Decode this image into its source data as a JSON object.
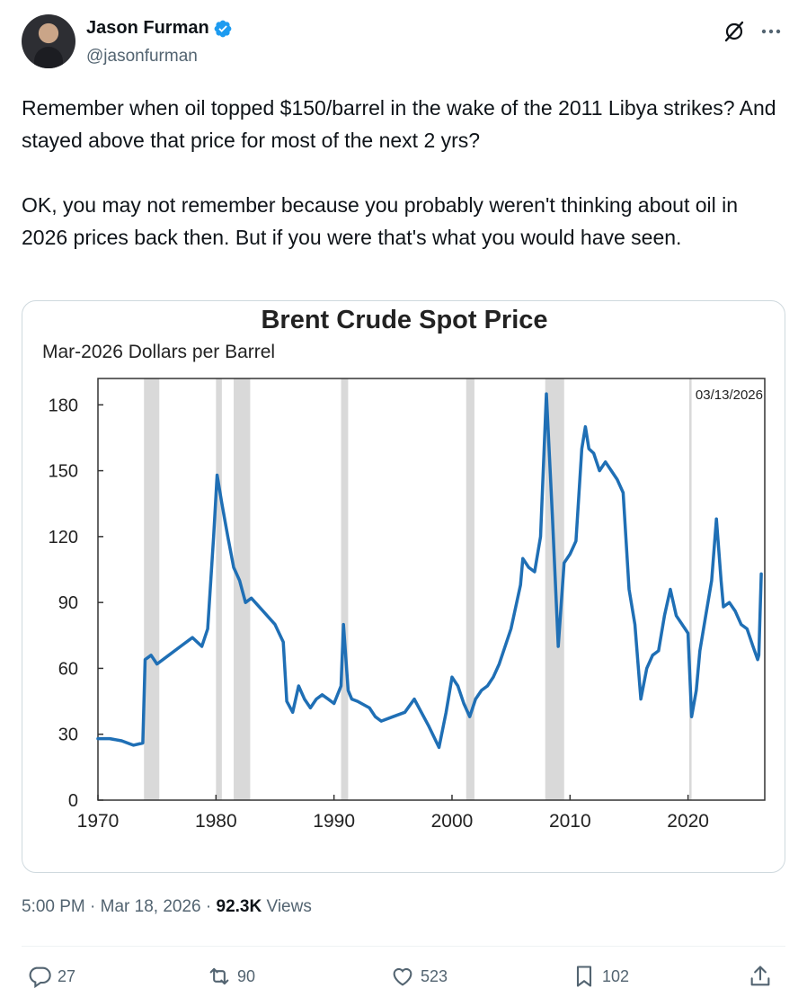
{
  "author": {
    "name": "Jason Furman",
    "handle": "@jasonfurman"
  },
  "tweet": {
    "paragraph1": "Remember when oil topped $150/barrel in the wake of the 2011 Libya strikes? And stayed above that price for most of the next 2 yrs?",
    "paragraph2": "OK, you may not remember because you probably weren't thinking about oil in 2026 prices back then. But if you were that's what you would have seen."
  },
  "meta": {
    "time": "5:00 PM",
    "date": "Mar 18, 2026",
    "views_count": "92.3K",
    "views_label": "Views",
    "sep": " · "
  },
  "actions": {
    "replies": "27",
    "reposts": "90",
    "likes": "523",
    "bookmarks": "102"
  },
  "colors": {
    "line": "#1f6fb5",
    "recession": "#d9d9d9",
    "verified": "#1d9bf0"
  },
  "icons": [
    "verified-badge-icon",
    "grok-icon",
    "more-icon",
    "reply-icon",
    "repost-icon",
    "like-icon",
    "bookmark-icon",
    "share-icon"
  ],
  "chart_data": {
    "type": "line",
    "title": "Brent Crude Spot Price",
    "subtitle": "Mar-2026 Dollars per Barrel",
    "date_label": "03/13/2026",
    "xlim": [
      1970,
      2026.5
    ],
    "ylim": [
      0,
      192
    ],
    "x_ticks": [
      1970,
      1980,
      1990,
      2000,
      2010,
      2020
    ],
    "y_ticks": [
      0,
      30,
      60,
      90,
      120,
      150,
      180
    ],
    "grid": false,
    "recessions": [
      [
        1973.9,
        1975.2
      ],
      [
        1980.0,
        1980.5
      ],
      [
        1981.5,
        1982.9
      ],
      [
        1990.6,
        1991.2
      ],
      [
        2001.2,
        2001.9
      ],
      [
        2007.9,
        2009.5
      ],
      [
        2020.1,
        2020.3
      ]
    ],
    "series": [
      {
        "x": [
          1970,
          1971,
          1972,
          1973,
          1973.8,
          1974.0,
          1974.5,
          1975,
          1976,
          1977,
          1978,
          1978.8,
          1979.3,
          1979.8,
          1980.1,
          1980.5,
          1981,
          1981.5,
          1982,
          1982.5,
          1983,
          1984,
          1985,
          1985.7,
          1986.0,
          1986.5,
          1987,
          1987.5,
          1988,
          1988.5,
          1989,
          1989.5,
          1990,
          1990.6,
          1990.8,
          1991.2,
          1991.5,
          1992,
          1993,
          1993.5,
          1994,
          1995,
          1996,
          1996.8,
          1997,
          1998,
          1998.9,
          1999.5,
          2000,
          2000.5,
          2001,
          2001.5,
          2002,
          2002.5,
          2003,
          2003.5,
          2004,
          2005,
          2005.8,
          2006,
          2006.5,
          2007,
          2007.5,
          2008.0,
          2008.5,
          2009.0,
          2009.5,
          2010,
          2010.5,
          2011.0,
          2011.3,
          2011.6,
          2012,
          2012.5,
          2013,
          2013.5,
          2014,
          2014.5,
          2015,
          2015.5,
          2016.0,
          2016.5,
          2017,
          2017.5,
          2018,
          2018.5,
          2019,
          2019.5,
          2020.0,
          2020.3,
          2020.7,
          2021,
          2021.5,
          2022.0,
          2022.4,
          2022.8,
          2023,
          2023.5,
          2024,
          2024.5,
          2025,
          2025.5,
          2025.9,
          2026.0,
          2026.2
        ],
        "y": [
          28,
          28,
          27,
          25,
          26,
          64,
          66,
          62,
          66,
          70,
          74,
          70,
          78,
          120,
          148,
          135,
          120,
          106,
          100,
          90,
          92,
          86,
          80,
          72,
          45,
          40,
          52,
          46,
          42,
          46,
          48,
          46,
          44,
          52,
          80,
          50,
          46,
          45,
          42,
          38,
          36,
          38,
          40,
          46,
          44,
          34,
          24,
          40,
          56,
          52,
          44,
          38,
          46,
          50,
          52,
          56,
          62,
          78,
          98,
          110,
          106,
          104,
          120,
          185,
          130,
          70,
          108,
          112,
          118,
          160,
          170,
          160,
          158,
          150,
          154,
          150,
          146,
          140,
          96,
          80,
          46,
          60,
          66,
          68,
          84,
          96,
          84,
          80,
          76,
          38,
          50,
          68,
          84,
          100,
          128,
          100,
          88,
          90,
          86,
          80,
          78,
          70,
          64,
          66,
          103
        ]
      }
    ]
  }
}
